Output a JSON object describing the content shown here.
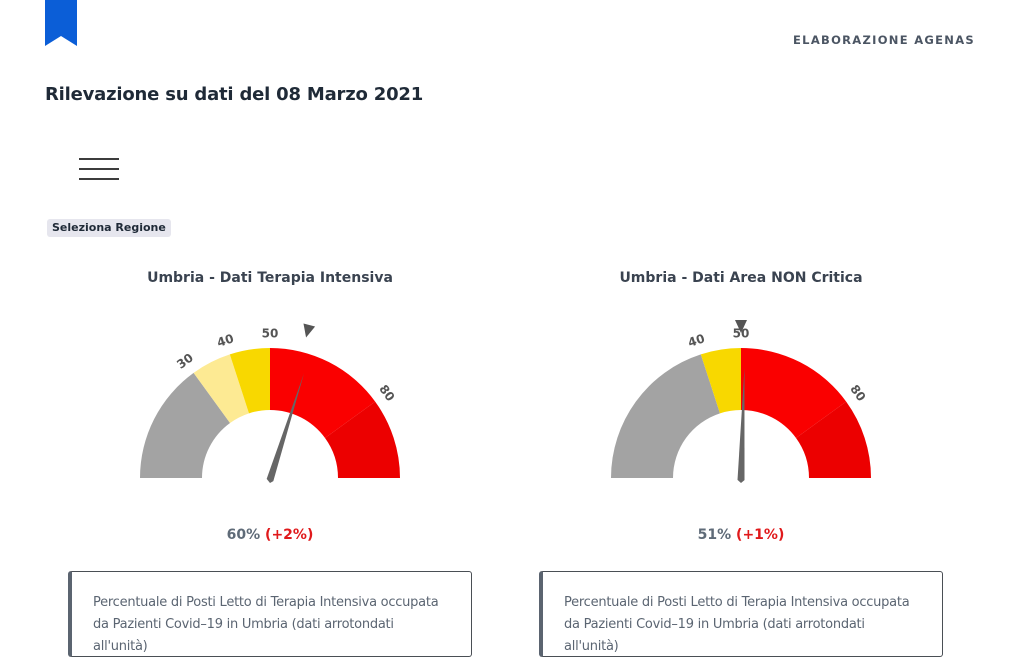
{
  "header": {
    "agency": "ELABORAZIONE AGENAS",
    "title": "Rilevazione su dati del 08 Marzo 2021",
    "bookmark_color": "#0b5ed7"
  },
  "menu": {
    "icon": "hamburger-menu-icon"
  },
  "region_select": {
    "label": "Seleziona Regione"
  },
  "gauges": [
    {
      "title": "Umbria - Dati Terapia Intensiva",
      "value": 60,
      "value_label": "60%",
      "delta_label": "(+2%)",
      "min": 0,
      "max": 100,
      "bands": [
        {
          "from": 0,
          "to": 30,
          "color": "#a3a3a3"
        },
        {
          "from": 30,
          "to": 40,
          "color": "#fdea93"
        },
        {
          "from": 40,
          "to": 50,
          "color": "#f8d800"
        },
        {
          "from": 50,
          "to": 80,
          "color": "#fa0000"
        },
        {
          "from": 80,
          "to": 100,
          "color": "#ec0000"
        }
      ],
      "ticks": [
        30,
        40,
        50,
        80
      ],
      "tick_labels": [
        "30",
        "40",
        "50",
        "80"
      ],
      "previous_value": 58,
      "description": "Percentuale di Posti Letto di Terapia Intensiva occupata da Pazienti Covid–19 in Umbria (dati arrotondati all'unità)"
    },
    {
      "title": "Umbria - Dati Area NON Critica",
      "value": 51,
      "value_label": "51%",
      "delta_label": "(+1%)",
      "min": 0,
      "max": 100,
      "bands": [
        {
          "from": 0,
          "to": 40,
          "color": "#a3a3a3"
        },
        {
          "from": 40,
          "to": 50,
          "color": "#f8d800"
        },
        {
          "from": 50,
          "to": 80,
          "color": "#fa0000"
        },
        {
          "from": 80,
          "to": 100,
          "color": "#ec0000"
        }
      ],
      "ticks": [
        40,
        50,
        80
      ],
      "tick_labels": [
        "40",
        "50",
        "80"
      ],
      "previous_value": 50,
      "description": "Percentuale di Posti Letto di Terapia Intensiva occupata da Pazienti Covid–19 in Umbria (dati arrotondati all'unità)"
    }
  ]
}
